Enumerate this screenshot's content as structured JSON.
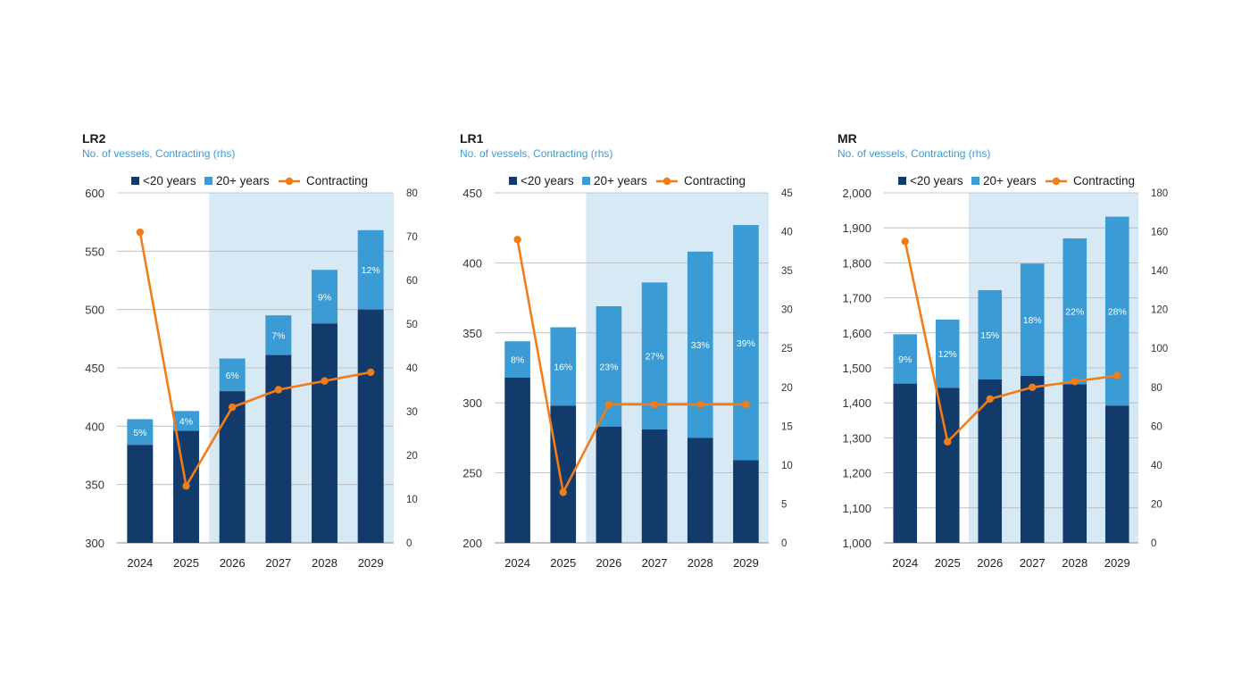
{
  "colors": {
    "young": "#123a6b",
    "old": "#3a9bd5",
    "contracting": "#f07d1a",
    "forecast_shade": "#d8e9f6",
    "grid": "#b5b5b5",
    "subtitle": "#3a9bd5"
  },
  "legend": {
    "young_label": "<20 years",
    "old_label": "20+ years",
    "contracting_label": "Contracting"
  },
  "chart_data": [
    {
      "type": "bar",
      "title": "LR2",
      "subtitle": "No. of vessels, Contracting (rhs)",
      "categories": [
        "2024",
        "2025",
        "2026",
        "2027",
        "2028",
        "2029"
      ],
      "forecast_start_index": 2,
      "ylim": [
        300,
        600
      ],
      "yticks": [
        300,
        350,
        400,
        450,
        500,
        550,
        600
      ],
      "ytick_labels": [
        "300",
        "350",
        "400",
        "450",
        "500",
        "550",
        "600"
      ],
      "y2lim": [
        0,
        80
      ],
      "y2ticks": [
        0,
        10,
        20,
        30,
        40,
        50,
        60,
        70,
        80
      ],
      "y2tick_labels": [
        "0",
        "10",
        "20",
        "30",
        "40",
        "50",
        "60",
        "70",
        "80"
      ],
      "series": [
        {
          "name": "<20 years",
          "kind": "stacked-bar",
          "values": [
            384,
            396,
            430,
            461,
            488,
            500
          ]
        },
        {
          "name": "20+ years",
          "kind": "stacked-bar",
          "totals": [
            406,
            413,
            458,
            495,
            534,
            568
          ],
          "labels": [
            "5%",
            "4%",
            "6%",
            "7%",
            "9%",
            "12%"
          ]
        },
        {
          "name": "Contracting",
          "kind": "line",
          "axis": "right",
          "values": [
            71,
            13,
            31,
            35,
            37,
            39
          ]
        }
      ]
    },
    {
      "type": "bar",
      "title": "LR1",
      "subtitle": "No. of vessels, Contracting (rhs)",
      "categories": [
        "2024",
        "2025",
        "2026",
        "2027",
        "2028",
        "2029"
      ],
      "forecast_start_index": 2,
      "ylim": [
        200,
        450
      ],
      "yticks": [
        200,
        250,
        300,
        350,
        400,
        450
      ],
      "ytick_labels": [
        "200",
        "250",
        "300",
        "350",
        "400",
        "450"
      ],
      "y2lim": [
        0,
        45
      ],
      "y2ticks": [
        0,
        5,
        10,
        15,
        20,
        25,
        30,
        35,
        40,
        45
      ],
      "y2tick_labels": [
        "0",
        "5",
        "10",
        "15",
        "20",
        "25",
        "30",
        "35",
        "40",
        "45"
      ],
      "series": [
        {
          "name": "<20 years",
          "kind": "stacked-bar",
          "values": [
            318,
            298,
            283,
            281,
            275,
            259
          ]
        },
        {
          "name": "20+ years",
          "kind": "stacked-bar",
          "totals": [
            344,
            354,
            369,
            386,
            408,
            427
          ],
          "labels": [
            "8%",
            "16%",
            "23%",
            "27%",
            "33%",
            "39%"
          ]
        },
        {
          "name": "Contracting",
          "kind": "line",
          "axis": "right",
          "values": [
            39,
            6.5,
            17.8,
            17.8,
            17.8,
            17.8
          ]
        }
      ]
    },
    {
      "type": "bar",
      "title": "MR",
      "subtitle": "No. of vessels, Contracting (rhs)",
      "categories": [
        "2024",
        "2025",
        "2026",
        "2027",
        "2028",
        "2029"
      ],
      "forecast_start_index": 2,
      "ylim": [
        1000,
        2000
      ],
      "yticks": [
        1000,
        1100,
        1200,
        1300,
        1400,
        1500,
        1600,
        1700,
        1800,
        1900,
        2000
      ],
      "ytick_labels": [
        "1,000",
        "1,100",
        "1,200",
        "1,300",
        "1,400",
        "1,500",
        "1,600",
        "1,700",
        "1,800",
        "1,900",
        "2,000"
      ],
      "y2lim": [
        0,
        180
      ],
      "y2ticks": [
        0,
        20,
        40,
        60,
        80,
        100,
        120,
        140,
        160,
        180
      ],
      "y2tick_labels": [
        "0",
        "20",
        "40",
        "60",
        "80",
        "100",
        "120",
        "140",
        "160",
        "180"
      ],
      "series": [
        {
          "name": "<20 years",
          "kind": "stacked-bar",
          "values": [
            1455,
            1443,
            1467,
            1477,
            1453,
            1392
          ]
        },
        {
          "name": "20+ years",
          "kind": "stacked-bar",
          "totals": [
            1596,
            1638,
            1722,
            1798,
            1870,
            1932
          ],
          "labels": [
            "9%",
            "12%",
            "15%",
            "18%",
            "22%",
            "28%"
          ]
        },
        {
          "name": "Contracting",
          "kind": "line",
          "axis": "right",
          "values": [
            155,
            52,
            74,
            80,
            83,
            86
          ]
        }
      ]
    }
  ]
}
